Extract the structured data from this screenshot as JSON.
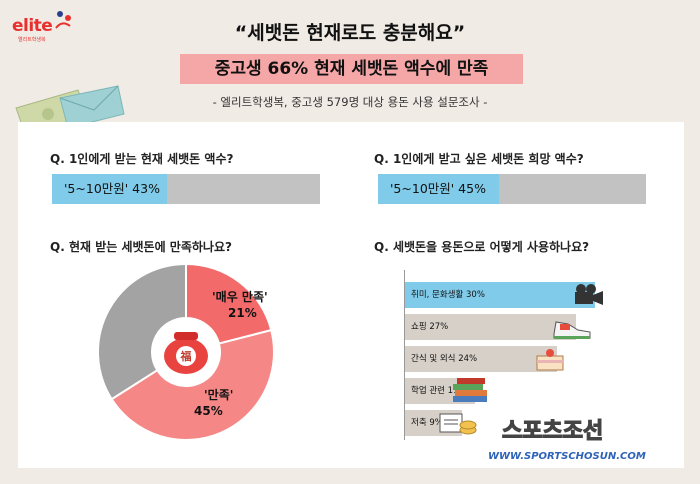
{
  "logo": {
    "brand": "elite",
    "sub": "엘리트학생복"
  },
  "title": "“세뱃돈 현재로도 충분해요”",
  "subtitle": "중고생 66% 현재 세뱃돈 액수에 만족",
  "source": "- 엘리트학생복, 중고생 579명 대상 용돈 사용 설문조사 -",
  "watermark": {
    "logo_text": "스포츠조선",
    "url": "WWW.SPORTSCHOSUN.COM"
  },
  "colors": {
    "blue": "#7fcbe9",
    "gray": "#c3c2c2",
    "pink": "#f5a7a7",
    "red": "#f26a6a",
    "salmon": "#f68787",
    "beige": "#d6d0c8"
  },
  "chart_data": [
    {
      "type": "bar",
      "title": "Q. 1인에게 받는 현재 세뱃돈 액수?",
      "categories": [
        "'5~10만원'"
      ],
      "values": [
        43
      ],
      "labels": [
        "'5~10만원' 43%"
      ],
      "ylim": [
        0,
        100
      ]
    },
    {
      "type": "bar",
      "title": "Q. 1인에게 받고 싶은 세뱃돈 희망 액수?",
      "categories": [
        "'5~10만원'"
      ],
      "values": [
        45
      ],
      "labels": [
        "'5~10만원' 45%"
      ],
      "ylim": [
        0,
        100
      ]
    },
    {
      "type": "pie",
      "title": "Q. 현재 받는 세뱃돈에 만족하나요?",
      "slices": [
        {
          "name": "'매우 만족'",
          "value": 21,
          "label": "21%",
          "color": "#f26a6a"
        },
        {
          "name": "'만족'",
          "value": 45,
          "label": "45%",
          "color": "#f68787"
        },
        {
          "name": "",
          "value": 34,
          "label": "",
          "color": "#a3a3a3"
        }
      ],
      "center_icon": "lucky-pouch-icon",
      "center_text": "福"
    },
    {
      "type": "bar",
      "title": "Q. 세뱃돈을 용돈으로 어떻게 사용하나요?",
      "orientation": "horizontal",
      "categories": [
        "취미, 문화생활",
        "쇼핑",
        "간식 및 외식",
        "학업 관련",
        "저축"
      ],
      "values": [
        30,
        27,
        24,
        11,
        9
      ],
      "labels": [
        "취미, 문화생활 30%",
        "쇼핑 27%",
        "간식 및 외식 24%",
        "학업 관련 11%",
        "저축 9%"
      ],
      "icons": [
        "film-camera-icon",
        "sneaker-icon",
        "cake-icon",
        "books-icon",
        "coins-icon"
      ],
      "highlight_index": 0
    }
  ]
}
